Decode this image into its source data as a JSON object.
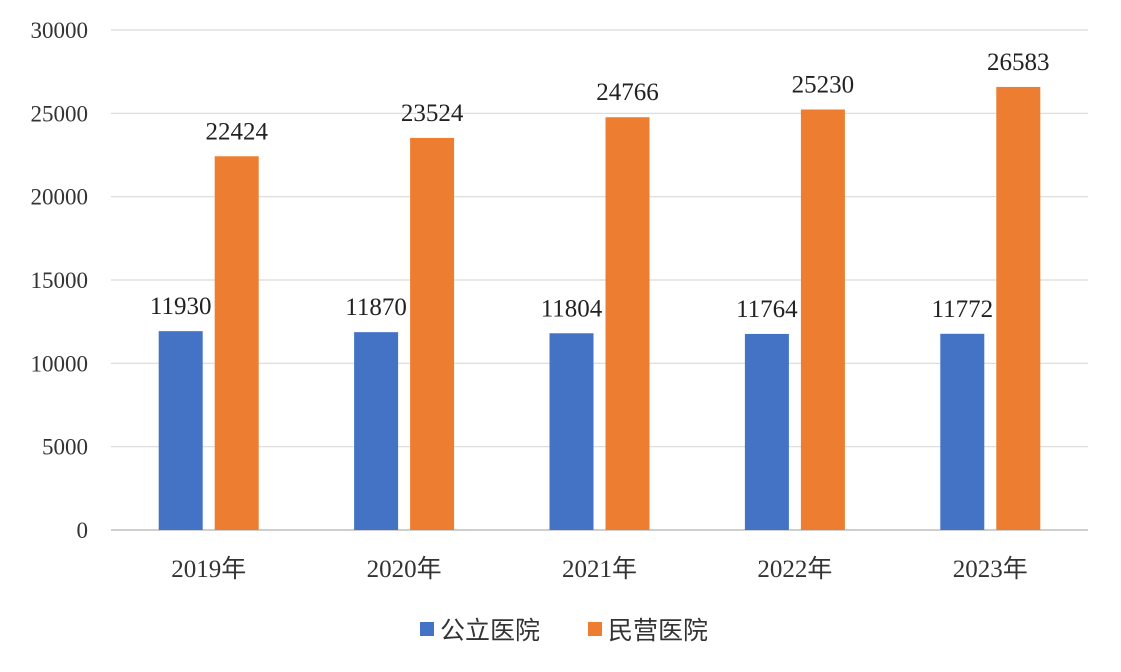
{
  "chart_data": {
    "type": "bar",
    "categories": [
      "2019年",
      "2020年",
      "2021年",
      "2022年",
      "2023年"
    ],
    "series": [
      {
        "name": "公立医院",
        "color": "#4472C4",
        "values": [
          11930,
          11870,
          11804,
          11764,
          11772
        ]
      },
      {
        "name": "民营医院",
        "color": "#ED7D31",
        "values": [
          22424,
          23524,
          24766,
          25230,
          26583
        ]
      }
    ],
    "ylim": [
      0,
      30000
    ],
    "yticks": [
      0,
      5000,
      10000,
      15000,
      20000,
      25000,
      30000
    ],
    "grid": true,
    "legend": "bottom",
    "data_labels": true
  }
}
